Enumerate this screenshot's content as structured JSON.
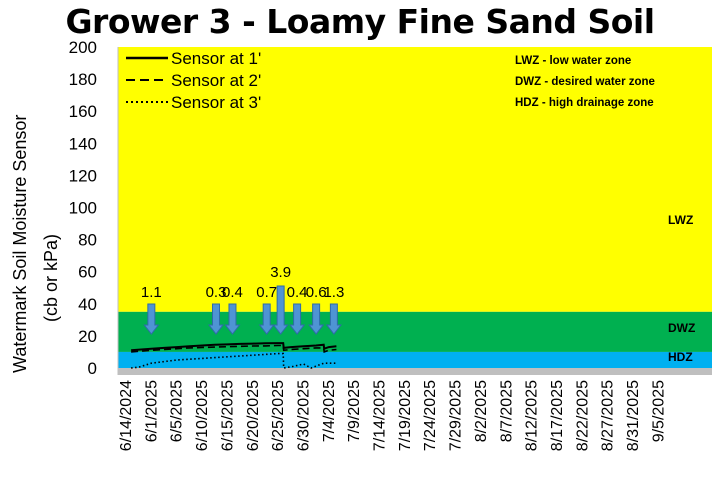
{
  "chart_data": {
    "type": "line",
    "title": "Grower 3 - Loamy Fine Sand Soil",
    "ylabel_line1": "Watermark Soil Moisture Sensor",
    "ylabel_line2": "(cb or kPa)",
    "ylim": [
      0,
      200
    ],
    "y_ticks": [
      0,
      20,
      40,
      60,
      80,
      100,
      120,
      140,
      160,
      180,
      200
    ],
    "x_tick_labels": [
      "6/14/2024",
      "6/1/2025",
      "6/5/2025",
      "6/10/2025",
      "6/15/2025",
      "6/20/2025",
      "6/25/2025",
      "6/30/2025",
      "7/4/2025",
      "7/9/2025",
      "7/14/2025",
      "7/19/2025",
      "7/24/2025",
      "7/29/2025",
      "8/2/2025",
      "8/7/2025",
      "8/12/2025",
      "8/17/2025",
      "8/22/2025",
      "8/27/2025",
      "8/31/2025",
      "9/5/2025"
    ],
    "zones": [
      {
        "name": "LWZ",
        "from": 35,
        "to": 200,
        "color": "#ffff00"
      },
      {
        "name": "DWZ",
        "from": 10,
        "to": 35,
        "color": "#00b050"
      },
      {
        "name": "HDZ",
        "from": 0,
        "to": 10,
        "color": "#00b0f0"
      }
    ],
    "zone_notes": [
      "LWZ  - low water zone",
      "DWZ - desired water zone",
      "HDZ - high drainage zone"
    ],
    "legend_position": "top-left",
    "series": [
      {
        "name": "Sensor at 1'",
        "style": "solid",
        "color": "#000000",
        "points": [
          [
            0.2,
            11
          ],
          [
            0.6,
            11.5
          ],
          [
            1.0,
            12
          ],
          [
            1.5,
            12.5
          ],
          [
            2.0,
            13
          ],
          [
            2.5,
            13.5
          ],
          [
            3.0,
            14
          ],
          [
            3.5,
            14.5
          ],
          [
            4.0,
            14.7
          ],
          [
            4.5,
            15
          ],
          [
            5.0,
            15.2
          ],
          [
            5.5,
            15.4
          ],
          [
            6.0,
            15.5
          ],
          [
            6.2,
            15.5
          ],
          [
            6.22,
            12.5
          ],
          [
            6.5,
            13
          ],
          [
            7.0,
            13.5
          ],
          [
            7.5,
            14
          ],
          [
            7.8,
            14.5
          ],
          [
            7.82,
            12
          ],
          [
            8.0,
            13
          ],
          [
            8.3,
            13.5
          ]
        ]
      },
      {
        "name": "Sensor at 2'",
        "style": "dashed",
        "color": "#000000",
        "points": [
          [
            0.2,
            10
          ],
          [
            0.6,
            10.5
          ],
          [
            1.0,
            11
          ],
          [
            1.5,
            11.5
          ],
          [
            2.0,
            12
          ],
          [
            2.5,
            12.5
          ],
          [
            3.0,
            12.8
          ],
          [
            3.5,
            13
          ],
          [
            4.0,
            13.3
          ],
          [
            4.5,
            13.5
          ],
          [
            5.0,
            13.7
          ],
          [
            5.5,
            13.8
          ],
          [
            6.0,
            14
          ],
          [
            6.2,
            14
          ],
          [
            6.22,
            11
          ],
          [
            6.5,
            11.5
          ],
          [
            7.0,
            12
          ],
          [
            7.5,
            12.5
          ],
          [
            7.8,
            12.5
          ],
          [
            7.82,
            10
          ],
          [
            8.0,
            11
          ],
          [
            8.3,
            11.5
          ]
        ]
      },
      {
        "name": "Sensor at 3'",
        "style": "dotted",
        "color": "#000000",
        "points": [
          [
            0.2,
            0
          ],
          [
            0.5,
            0.5
          ],
          [
            0.8,
            2
          ],
          [
            1.0,
            3
          ],
          [
            1.5,
            4
          ],
          [
            2.0,
            5
          ],
          [
            2.5,
            5.5
          ],
          [
            3.0,
            6
          ],
          [
            3.5,
            6.5
          ],
          [
            4.0,
            7
          ],
          [
            4.5,
            7.5
          ],
          [
            5.0,
            8
          ],
          [
            5.5,
            8.5
          ],
          [
            6.0,
            9
          ],
          [
            6.2,
            9
          ],
          [
            6.22,
            0
          ],
          [
            6.6,
            1
          ],
          [
            7.0,
            2.5
          ],
          [
            7.3,
            0
          ],
          [
            7.8,
            3
          ],
          [
            8.3,
            3
          ]
        ]
      }
    ],
    "rain_events": [
      {
        "label": "1.1",
        "x": 1.0
      },
      {
        "label": "0.3",
        "x": 3.55
      },
      {
        "label": "0.4",
        "x": 4.2
      },
      {
        "label": "0.7",
        "x": 5.55
      },
      {
        "label": "3.9",
        "x": 6.1
      },
      {
        "label": "0.4",
        "x": 6.75
      },
      {
        "label": "0.6",
        "x": 7.5
      },
      {
        "label": "1.3",
        "x": 8.2
      }
    ]
  }
}
